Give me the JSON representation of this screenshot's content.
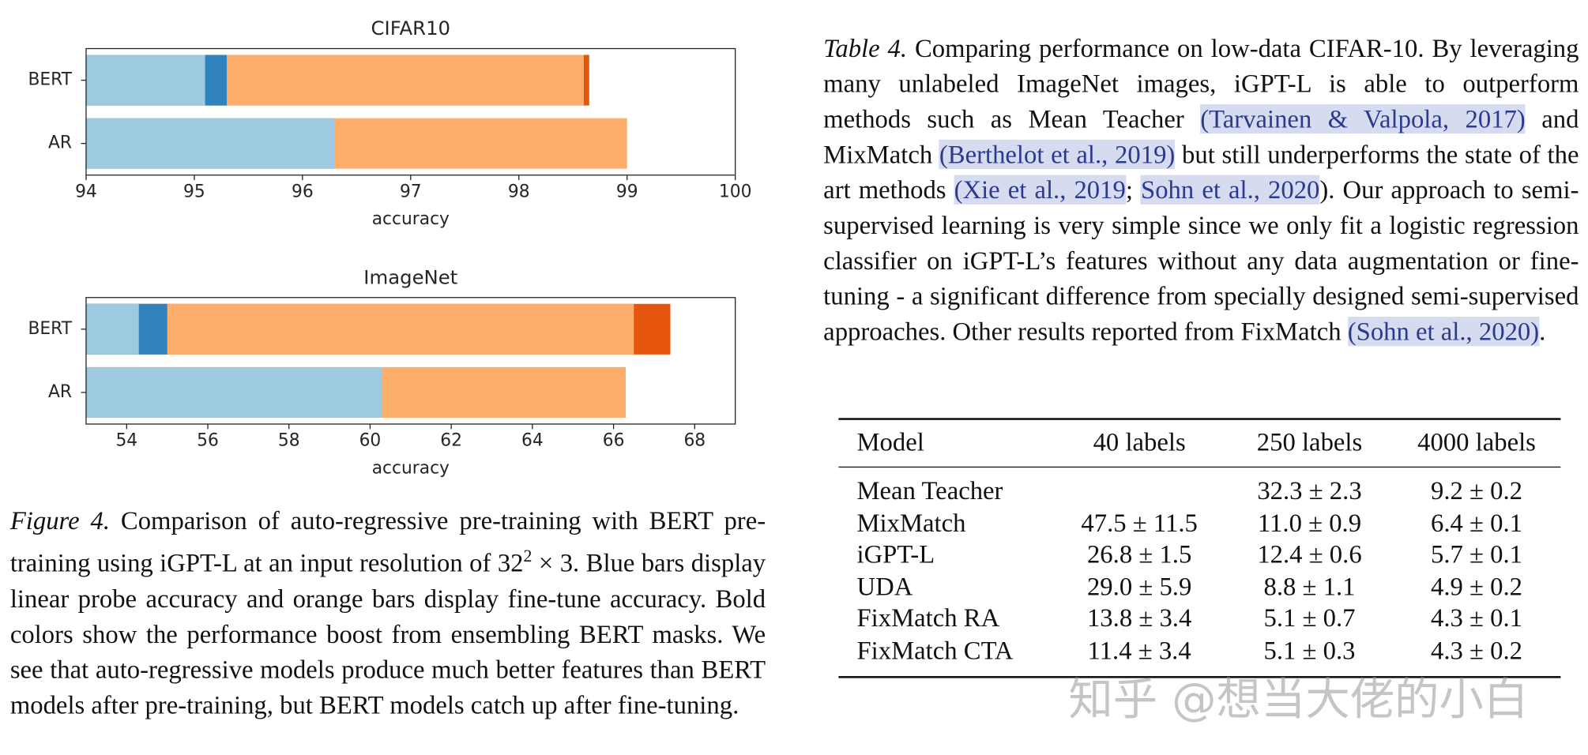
{
  "charts": [
    {
      "chart_data": {
        "type": "bar",
        "orientation": "horizontal",
        "title": "CIFAR10",
        "categories": [
          "BERT",
          "AR"
        ],
        "series": [
          {
            "color": "#e6550d",
            "values": [
              98.65,
              null
            ]
          },
          {
            "color": "#fdae6b",
            "values": [
              98.6,
              99.0
            ]
          },
          {
            "color": "#3182bd",
            "values": [
              95.3,
              null
            ]
          },
          {
            "color": "#9ecae1",
            "values": [
              95.1,
              96.3
            ]
          }
        ],
        "xlim": [
          94,
          100
        ],
        "xticks": [
          94,
          95,
          96,
          97,
          98,
          99,
          100
        ],
        "xlabel": "accuracy"
      }
    },
    {
      "chart_data": {
        "type": "bar",
        "orientation": "horizontal",
        "title": "ImageNet",
        "categories": [
          "BERT",
          "AR"
        ],
        "series": [
          {
            "color": "#e6550d",
            "values": [
              67.4,
              null
            ]
          },
          {
            "color": "#fdae6b",
            "values": [
              66.5,
              66.3
            ]
          },
          {
            "color": "#3182bd",
            "values": [
              55.0,
              null
            ]
          },
          {
            "color": "#9ecae1",
            "values": [
              54.3,
              60.3
            ]
          }
        ],
        "xlim": [
          53,
          69
        ],
        "xticks": [
          54,
          56,
          58,
          60,
          62,
          64,
          66,
          68
        ],
        "xlabel": "accuracy"
      }
    }
  ],
  "figure_caption": {
    "label": "Figure 4.",
    "text_before": " Comparison of auto-regressive pre-training with BERT pre-training using iGPT-L at an input resolution of 32",
    "superscript": "2",
    "text_after": " × 3. Blue bars display linear probe accuracy and orange bars display fine-tune accuracy. Bold colors show the performance boost from ensembling BERT masks. We see that auto-regressive models produce much better features than BERT models after pre-training, but BERT models catch up after fine-tuning."
  },
  "table_caption": {
    "label": "Table 4.",
    "segments": [
      {
        "text": " Comparing performance on low-data CIFAR-10. By leveraging many unlabeled ImageNet images, iGPT-L is able to outperform methods such as Mean Teacher "
      },
      {
        "text": "(Tarvainen & Valpola, 2017)",
        "cite": true
      },
      {
        "text": " and MixMatch "
      },
      {
        "text": "(Berthelot et al., 2019)",
        "cite": true
      },
      {
        "text": " but still underperforms the state of the art methods "
      },
      {
        "text": "(Xie et al., 2019",
        "cite": true
      },
      {
        "text": "; "
      },
      {
        "text": "Sohn et al., 2020",
        "cite": true
      },
      {
        "text": "). Our approach to semi-supervised learning is very simple since we only fit a logistic regression classifier on iGPT-L’s features without any data augmentation or fine-tuning - a significant difference from specially designed semi-supervised approaches. Other results reported from FixMatch "
      },
      {
        "text": "(Sohn et al., 2020)",
        "cite": true
      },
      {
        "text": "."
      }
    ]
  },
  "table": {
    "header": [
      "Model",
      "40 labels",
      "250 labels",
      "4000 labels"
    ],
    "rows": [
      [
        "Mean Teacher",
        null,
        "32.3 ± 2.3",
        "9.2 ± 0.2"
      ],
      [
        "MixMatch",
        "47.5 ± 11.5",
        "11.0 ± 0.9",
        "6.4 ± 0.1"
      ],
      [
        "iGPT-L",
        "26.8 ± 1.5",
        "12.4 ± 0.6",
        "5.7 ± 0.1"
      ],
      [
        "UDA",
        "29.0 ± 5.9",
        "8.8 ± 1.1",
        "4.9 ± 0.2"
      ],
      [
        "FixMatch RA",
        "13.8 ± 3.4",
        "5.1 ± 0.7",
        "4.3 ± 0.1"
      ],
      [
        "FixMatch CTA",
        "11.4 ± 3.4",
        "5.1 ± 0.3",
        "4.3 ± 0.2"
      ]
    ]
  },
  "watermark": "知乎 @想当大佬的小白"
}
